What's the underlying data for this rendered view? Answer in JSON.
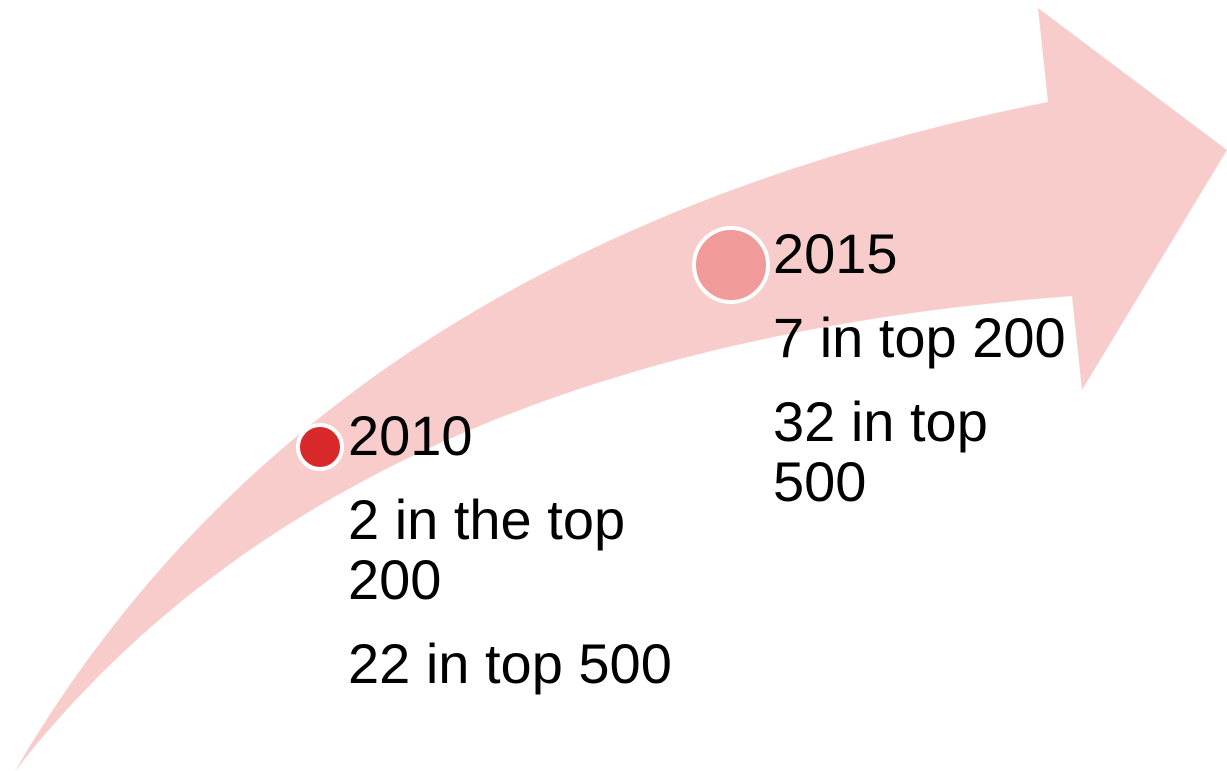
{
  "milestones": [
    {
      "year": "2010",
      "lines": [
        "2 in the top 200",
        "22 in top 500"
      ]
    },
    {
      "year": "2015",
      "lines": [
        "7 in top 200",
        "32 in top 500"
      ]
    }
  ]
}
